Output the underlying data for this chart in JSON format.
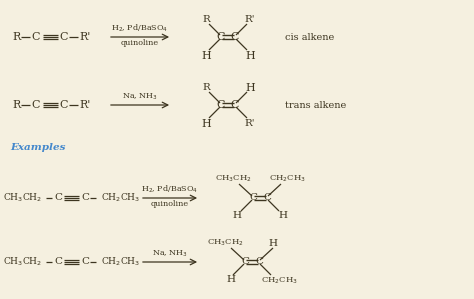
{
  "bg_color": "#f5f0e0",
  "text_color": "#3d3520",
  "example_color": "#4488cc",
  "figsize": [
    4.74,
    2.99
  ],
  "dpi": 100,
  "xlim": [
    0,
    474
  ],
  "ylim": [
    299,
    0
  ]
}
